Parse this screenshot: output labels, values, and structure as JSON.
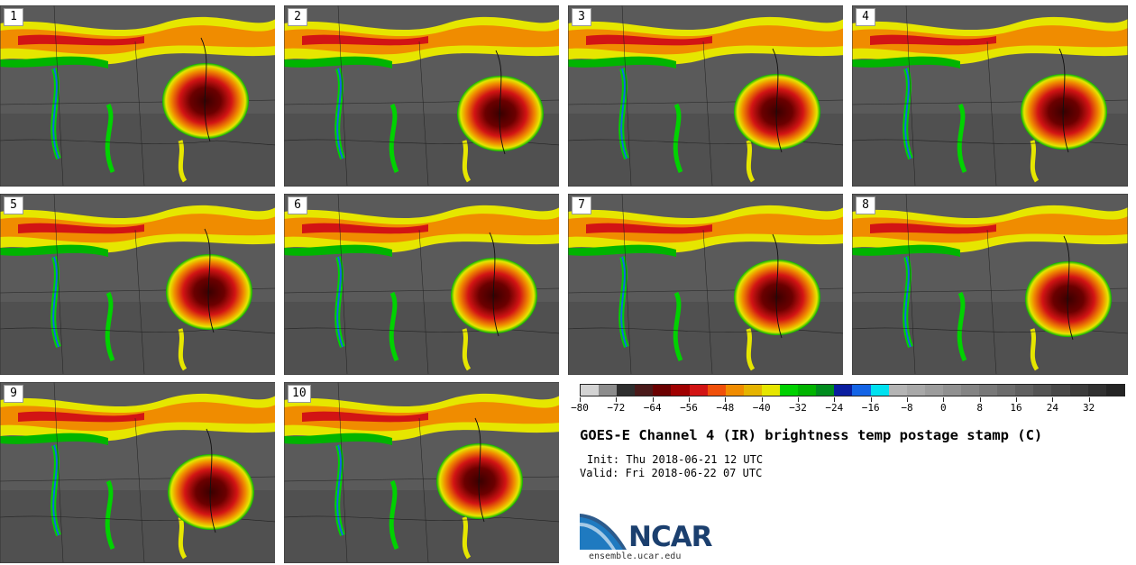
{
  "panels": [
    {
      "label": "1"
    },
    {
      "label": "2"
    },
    {
      "label": "3"
    },
    {
      "label": "4"
    },
    {
      "label": "5"
    },
    {
      "label": "6"
    },
    {
      "label": "7"
    },
    {
      "label": "8"
    },
    {
      "label": "9"
    },
    {
      "label": "10"
    }
  ],
  "colorbar": {
    "colors": [
      "#d3d3d3",
      "#8c8c8c",
      "#2e2e2e",
      "#4a1a1a",
      "#6b0000",
      "#a00000",
      "#d21414",
      "#f0500a",
      "#f08c00",
      "#e6b400",
      "#e6e600",
      "#00d200",
      "#00b400",
      "#008c1e",
      "#0a1ea0",
      "#1464e6",
      "#00e1f0",
      "#b4b4b4",
      "#a8a8a8",
      "#9c9c9c",
      "#909090",
      "#848484",
      "#787878",
      "#6c6c6c",
      "#606060",
      "#545454",
      "#484848",
      "#3c3c3c",
      "#303030",
      "#242424"
    ],
    "tick_labels": [
      "−80",
      "−72",
      "−64",
      "−56",
      "−48",
      "−40",
      "−32",
      "−24",
      "−16",
      "−8",
      "0",
      "8",
      "16",
      "24",
      "32"
    ]
  },
  "title": "GOES-E Channel 4 (IR) brightness temp postage stamp (C)",
  "init": "Init: Thu 2018-06-21 12 UTC",
  "valid": "Valid: Fri 2018-06-22 07 UTC",
  "logo_text": "NCAR",
  "site": "ensemble.ucar.edu",
  "colors": {
    "storm_core": "#6b0000",
    "storm_mid": "#d21414",
    "band_orange": "#f08c00",
    "band_yellow": "#e6e600",
    "band_green": "#00b400",
    "band_blue": "#1464e6",
    "background_gray": "#5a5a5a"
  }
}
